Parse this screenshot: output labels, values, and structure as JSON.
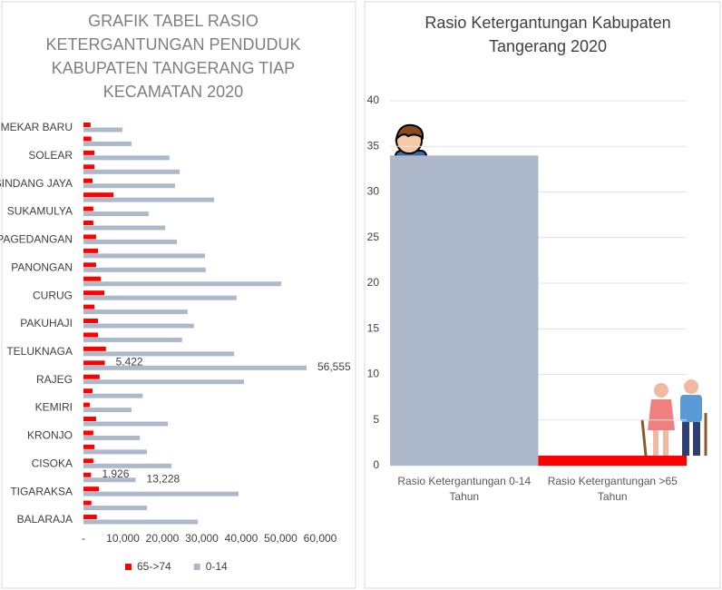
{
  "chart_data": [
    {
      "type": "hbar",
      "title": "GRAFIK TABEL RASIO KETERGANTUNGAN PENDUDUK KABUPATEN TANGERANG TIAP KECAMATAN 2020",
      "categories": [
        "MEKAR BARU",
        null,
        "SOLEAR",
        null,
        "SINDANG JAYA",
        null,
        "SUKAMULYA",
        null,
        "PAGEDANGAN",
        null,
        "PANONGAN",
        null,
        "CURUG",
        null,
        "PAKUHAJI",
        null,
        "TELUKNAGA",
        null,
        "RAJEG",
        null,
        "KEMIRI",
        null,
        "KRONJO",
        null,
        "CISOKA",
        null,
        "TIGARAKSA",
        null,
        "BALARAJA"
      ],
      "series": [
        {
          "name": "65->74",
          "color": "#ff0000",
          "values": [
            1800,
            2000,
            2800,
            2800,
            2300,
            7600,
            2500,
            2500,
            3200,
            3700,
            3200,
            4400,
            5300,
            2800,
            3700,
            3700,
            5700,
            5422,
            4100,
            2300,
            1600,
            3200,
            2500,
            2800,
            2500,
            1926,
            3900,
            2000,
            3400
          ],
          "value_labels": [
            null,
            null,
            null,
            null,
            null,
            null,
            null,
            null,
            null,
            null,
            null,
            null,
            null,
            null,
            null,
            null,
            null,
            "5,422",
            null,
            null,
            null,
            null,
            null,
            null,
            null,
            "1,926",
            null,
            null,
            null
          ]
        },
        {
          "name": "0-14",
          "color": "#adb9ca",
          "values": [
            9900,
            12200,
            21800,
            24400,
            23200,
            33100,
            16500,
            20700,
            23700,
            30800,
            31000,
            50100,
            38800,
            26400,
            28000,
            25000,
            38200,
            56555,
            40700,
            15000,
            12200,
            21400,
            14300,
            16100,
            22300,
            13228,
            39300,
            16100,
            29000
          ],
          "value_labels": [
            null,
            null,
            null,
            null,
            null,
            null,
            null,
            null,
            null,
            null,
            null,
            null,
            null,
            null,
            null,
            null,
            null,
            "56,555",
            null,
            null,
            null,
            null,
            null,
            null,
            null,
            "13,228",
            null,
            null,
            null
          ]
        }
      ],
      "xlim": [
        0,
        60000
      ],
      "xticks": [
        {
          "value": 0,
          "label": "-"
        },
        {
          "value": 10000,
          "label": "10,000"
        },
        {
          "value": 20000,
          "label": "20,000"
        },
        {
          "value": 30000,
          "label": "30,000"
        },
        {
          "value": 40000,
          "label": "40,000"
        },
        {
          "value": 50000,
          "label": "50,000"
        },
        {
          "value": 60000,
          "label": "60,000"
        }
      ],
      "grid": false,
      "legend": "bottom"
    },
    {
      "type": "bar",
      "title": "Rasio Ketergantungan Kabupaten Tangerang 2020",
      "categories": [
        "Rasio Ketergantungan 0-14 Tahun",
        "Rasio Ketergantungan >65 Tahun"
      ],
      "values": [
        34,
        1.1
      ],
      "colors": [
        "#adb9ca",
        "#ff0000"
      ],
      "ylim": [
        0,
        40
      ],
      "yticks": [
        0,
        5,
        10,
        15,
        20,
        25,
        30,
        35,
        40
      ],
      "grid": true
    }
  ]
}
